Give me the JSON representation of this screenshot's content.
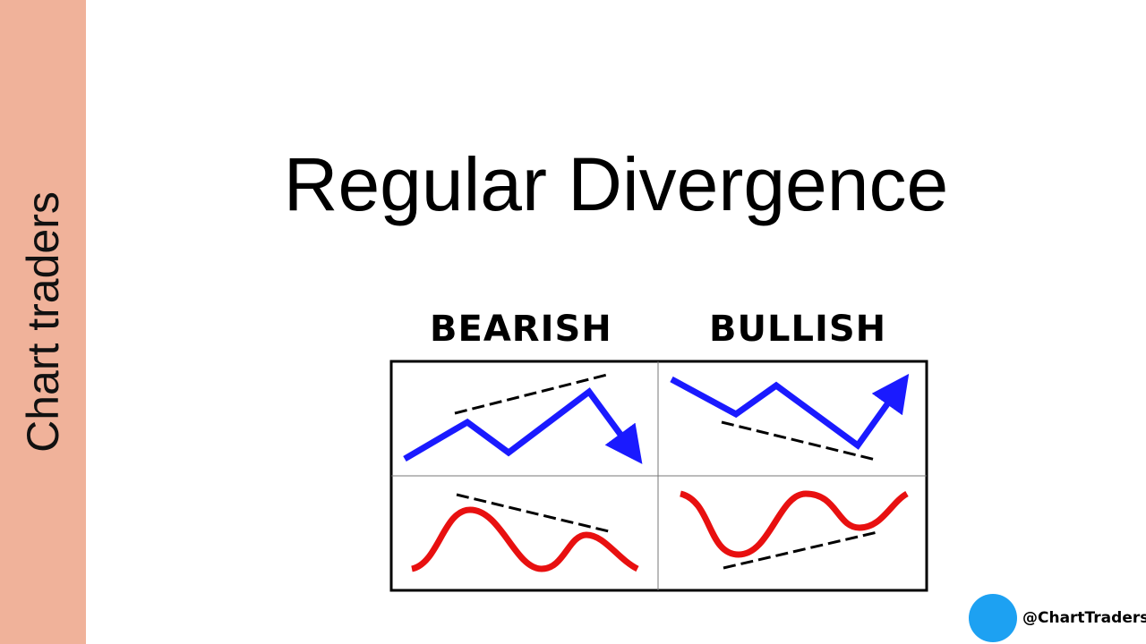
{
  "sidebar": {
    "label": "Chart traders"
  },
  "title": "Regular Divergence",
  "diagram": {
    "columns": [
      "BEARISH",
      "BULLISH"
    ]
  },
  "footer": {
    "handle": "@ChartTraders"
  }
}
